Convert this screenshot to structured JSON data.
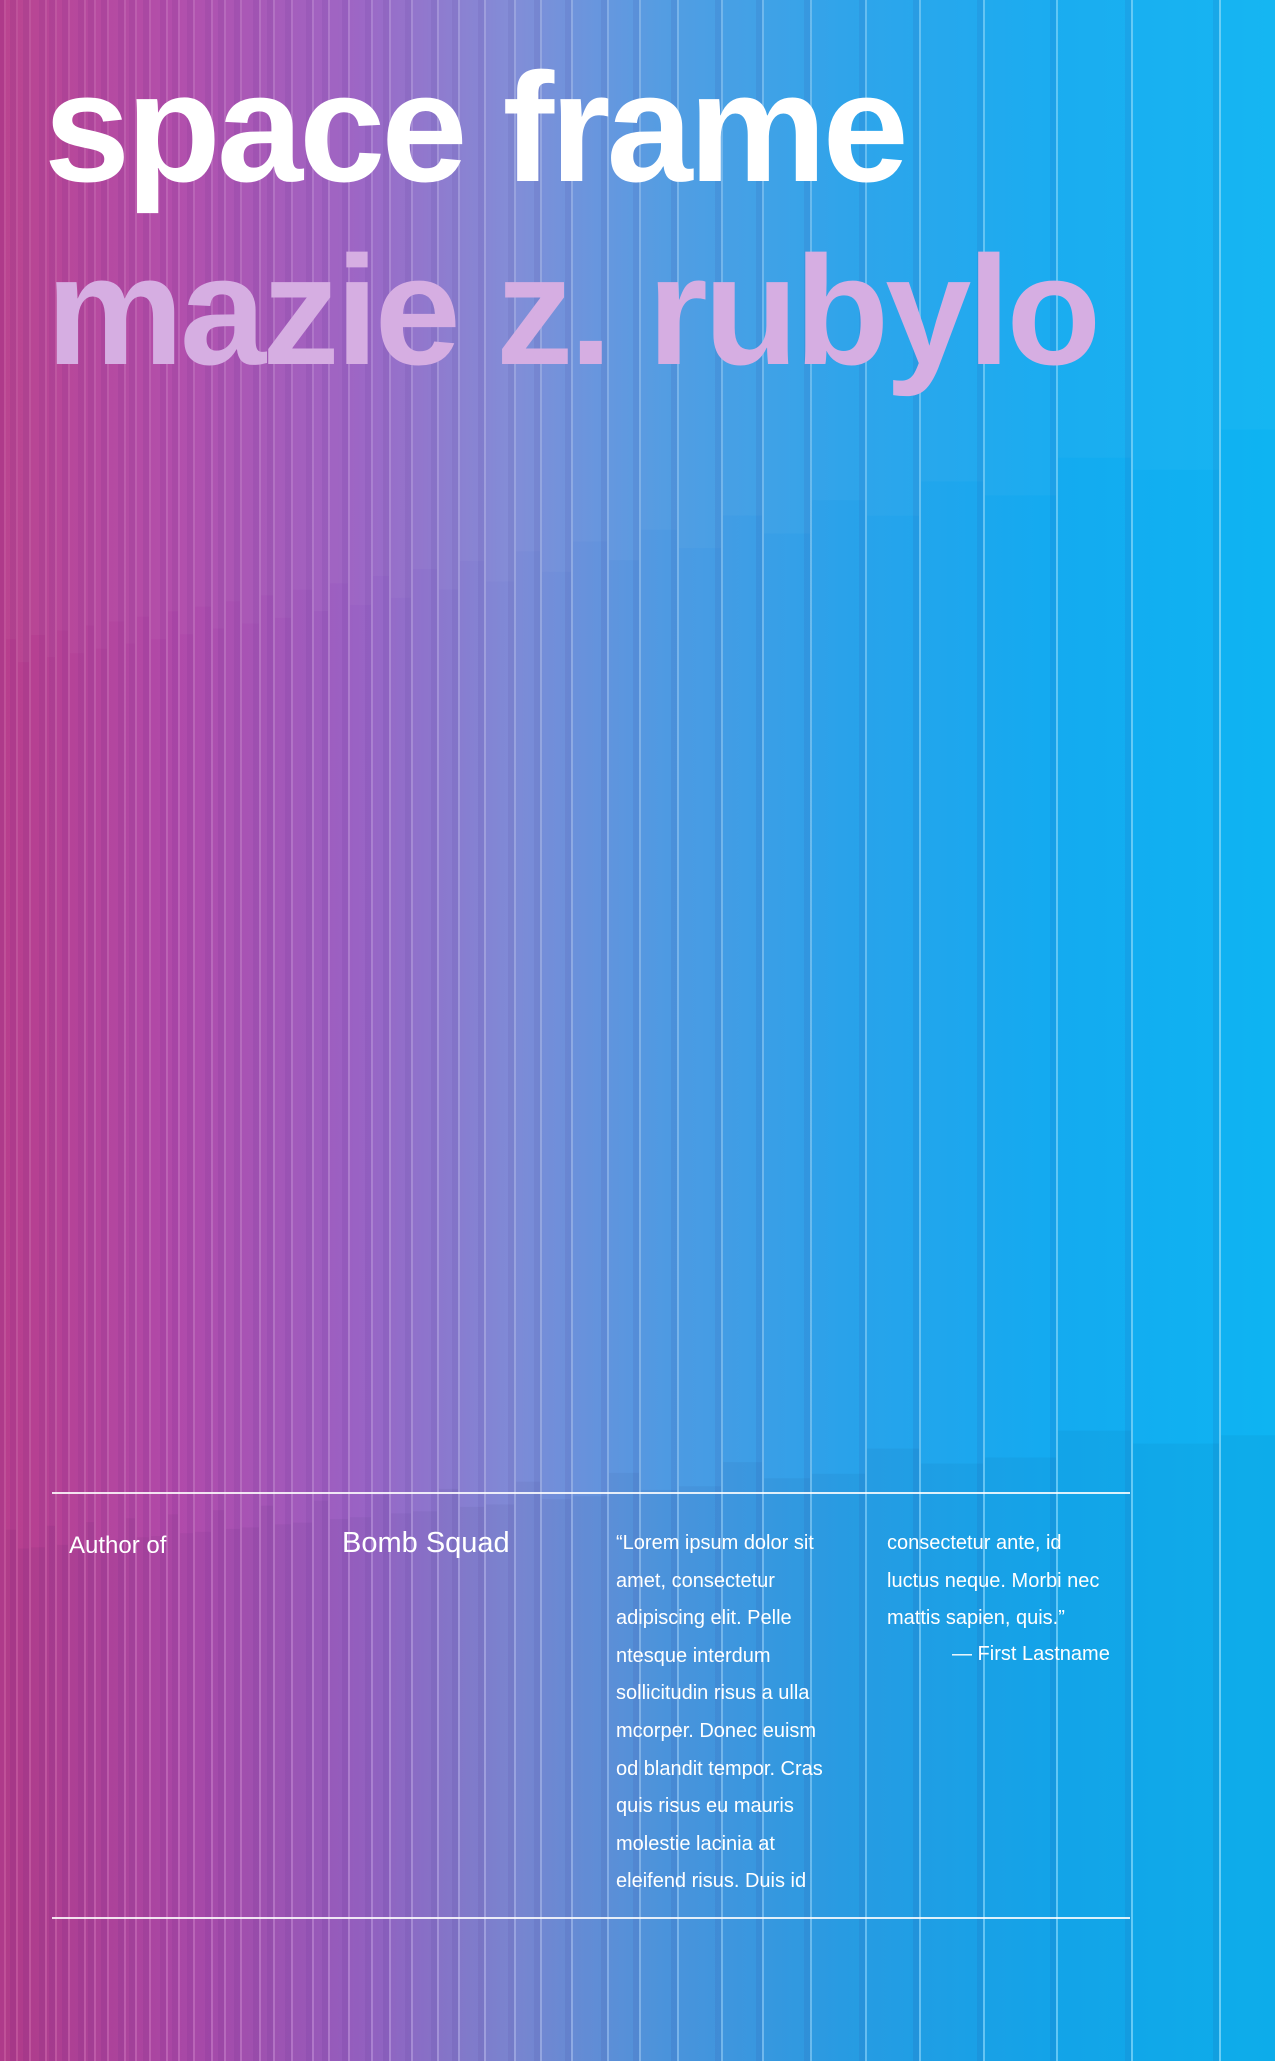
{
  "cover": {
    "title": "space frame",
    "author": "mazie z. rubylo",
    "colors": {
      "title": "#ffffff",
      "author": "#d6aee2",
      "background_left": "#b83e8c",
      "background_mid": "#7f8ad6",
      "background_right": "#0eb4f2",
      "rules": "#ffffff"
    }
  },
  "footer": {
    "author_of_label": "Author of",
    "book_title": "Bomb Squad",
    "quote_col1": [
      "“Lorem ipsum dolor sit",
      "amet, consectetur",
      "adipiscing elit. Pelle",
      "ntesque interdum",
      "sollicitudin risus a ulla",
      "mcorper. Donec euism",
      "od blandit tempor. Cras",
      "quis risus eu mauris",
      "molestie lacinia at",
      "eleifend risus. Duis id"
    ],
    "quote_col2": [
      "consectetur ante, id",
      "luctus neque. Morbi nec",
      "mattis sapien, quis.”"
    ],
    "attribution": "— First Lastname"
  }
}
